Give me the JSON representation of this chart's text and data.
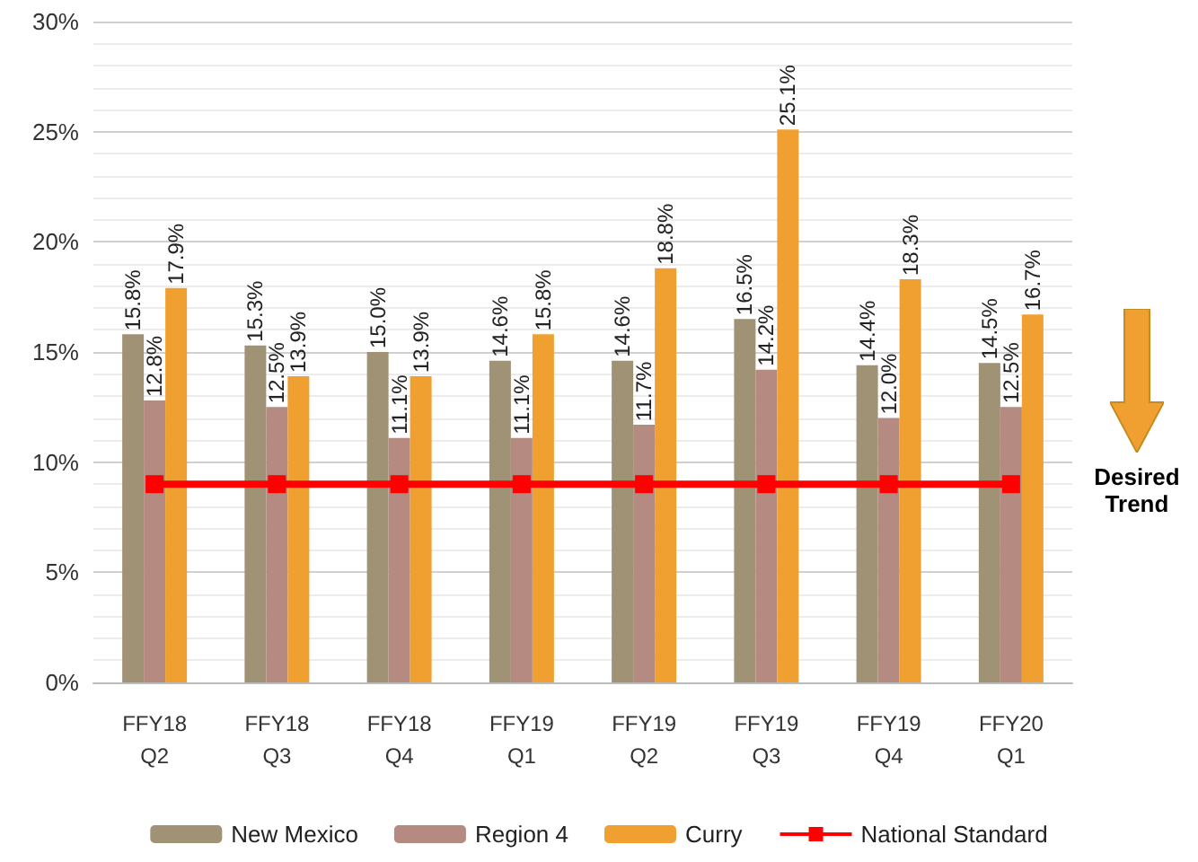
{
  "chart_data": {
    "type": "bar",
    "categories": [
      "FFY18\nQ2",
      "FFY18\nQ3",
      "FFY18\nQ4",
      "FFY19\nQ1",
      "FFY19\nQ2",
      "FFY19\nQ3",
      "FFY19\nQ4",
      "FFY20\nQ1"
    ],
    "series": [
      {
        "name": "New Mexico",
        "color": "#a09274",
        "values": [
          15.8,
          15.3,
          15.0,
          14.6,
          14.6,
          16.5,
          14.4,
          14.5
        ],
        "value_labels": [
          "15.8%",
          "15.3%",
          "15.0%",
          "14.6%",
          "14.6%",
          "16.5%",
          "14.4%",
          "14.5%"
        ]
      },
      {
        "name": "Region 4",
        "color": "#b58a80",
        "values": [
          12.8,
          12.5,
          11.1,
          11.1,
          11.7,
          14.2,
          12.0,
          12.5
        ],
        "value_labels": [
          "12.8%",
          "12.5%",
          "11.1%",
          "11.1%",
          "11.7%",
          "14.2%",
          "12.0%",
          "12.5%"
        ]
      },
      {
        "name": "Curry",
        "color": "#f0a030",
        "values": [
          17.9,
          13.9,
          13.9,
          15.8,
          18.8,
          25.1,
          18.3,
          16.7
        ],
        "value_labels": [
          "17.9%",
          "13.9%",
          "13.9%",
          "15.8%",
          "18.8%",
          "25.1%",
          "18.3%",
          "16.7%"
        ]
      },
      {
        "name": "National Standard",
        "type": "line",
        "color": "#ff0000",
        "marker": "square",
        "values": [
          9,
          9,
          9,
          9,
          9,
          9,
          9,
          9
        ]
      }
    ],
    "ylim": [
      0,
      30
    ],
    "yticks": [
      {
        "value": 0,
        "label": "0%"
      },
      {
        "value": 5,
        "label": "5%"
      },
      {
        "value": 10,
        "label": "10%"
      },
      {
        "value": 15,
        "label": "15%"
      },
      {
        "value": 20,
        "label": "20%"
      },
      {
        "value": 25,
        "label": "25%"
      },
      {
        "value": 30,
        "label": "30%"
      }
    ],
    "grid": "y",
    "legend": "bottom",
    "annotations": [
      "Desired Trend"
    ]
  }
}
